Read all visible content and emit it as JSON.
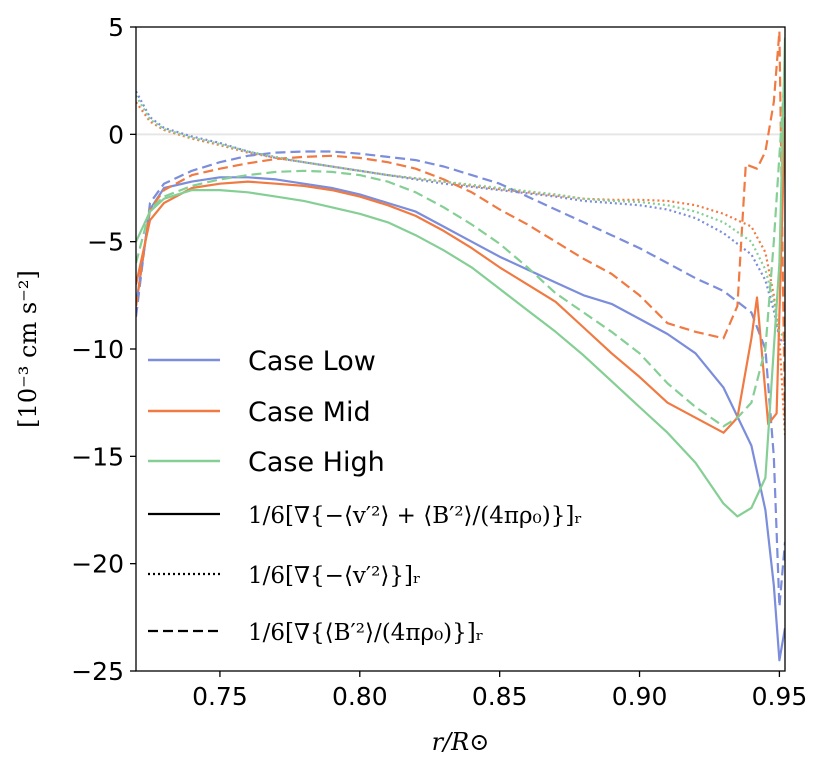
{
  "chart_data": {
    "type": "line",
    "xlabel": "r/R⊙",
    "ylabel": "[10⁻³ cm s⁻²]",
    "xlim": [
      0.72,
      0.952
    ],
    "ylim": [
      -25,
      5
    ],
    "x_ticks": [
      {
        "value": 0.75,
        "label": "0.75"
      },
      {
        "value": 0.8,
        "label": "0.80"
      },
      {
        "value": 0.85,
        "label": "0.85"
      },
      {
        "value": 0.9,
        "label": "0.90"
      },
      {
        "value": 0.95,
        "label": "0.95"
      }
    ],
    "y_ticks": [
      {
        "value": 5,
        "label": "5"
      },
      {
        "value": 0,
        "label": "0"
      },
      {
        "value": -5,
        "label": "−5"
      },
      {
        "value": -10,
        "label": "−10"
      },
      {
        "value": -15,
        "label": "−15"
      },
      {
        "value": -20,
        "label": "−20"
      },
      {
        "value": -25,
        "label": "−25"
      }
    ],
    "zero_line": true,
    "legend": {
      "placement": "lower-left",
      "cases": [
        {
          "label": "Case Low",
          "color": "#7b8ddb"
        },
        {
          "label": "Case Mid",
          "color": "#f07a42"
        },
        {
          "label": "Case High",
          "color": "#85cf95"
        }
      ],
      "styles": [
        {
          "style": "solid",
          "label": "1/6[∇{−⟨v′²⟩ + ⟨B′²⟩/(4πρ₀)}]ᵣ"
        },
        {
          "style": "dotted",
          "label": "1/6[∇{−⟨v′²⟩}]ᵣ"
        },
        {
          "style": "dashed",
          "label": "1/6[∇{⟨B′²⟩/(4πρ₀)}]ᵣ"
        }
      ]
    },
    "series": [
      {
        "name": "Case Low total",
        "case": "Case Low",
        "style": "solid",
        "color": "#7b8ddb",
        "x": [
          0.72,
          0.725,
          0.73,
          0.74,
          0.75,
          0.76,
          0.77,
          0.78,
          0.79,
          0.8,
          0.81,
          0.82,
          0.83,
          0.84,
          0.85,
          0.86,
          0.87,
          0.88,
          0.89,
          0.9,
          0.91,
          0.92,
          0.93,
          0.94,
          0.945,
          0.948,
          0.95,
          0.952
        ],
        "y": [
          -8.0,
          -3.5,
          -2.5,
          -2.2,
          -2.0,
          -2.0,
          -2.1,
          -2.3,
          -2.5,
          -2.8,
          -3.2,
          -3.6,
          -4.3,
          -5.0,
          -5.7,
          -6.3,
          -6.9,
          -7.5,
          -7.9,
          -8.6,
          -9.3,
          -10.2,
          -11.8,
          -14.5,
          -17.5,
          -21.0,
          -24.5,
          -23.0
        ]
      },
      {
        "name": "Case Low magnetic",
        "case": "Case Low",
        "style": "dashed",
        "color": "#7b8ddb",
        "x": [
          0.72,
          0.725,
          0.73,
          0.74,
          0.75,
          0.76,
          0.77,
          0.78,
          0.79,
          0.8,
          0.81,
          0.82,
          0.83,
          0.84,
          0.85,
          0.86,
          0.87,
          0.88,
          0.89,
          0.9,
          0.91,
          0.92,
          0.93,
          0.94,
          0.945,
          0.948,
          0.95,
          0.952
        ],
        "y": [
          -8.5,
          -3.2,
          -2.3,
          -1.7,
          -1.3,
          -1.0,
          -0.85,
          -0.8,
          -0.8,
          -0.9,
          -1.05,
          -1.2,
          -1.5,
          -1.9,
          -2.3,
          -2.9,
          -3.5,
          -4.1,
          -4.7,
          -5.3,
          -6.0,
          -6.7,
          -7.3,
          -8.3,
          -10.0,
          -15.0,
          -22.0,
          -19.0
        ]
      },
      {
        "name": "Case Low hydro",
        "case": "Case Low",
        "style": "dotted",
        "color": "#7b8ddb",
        "x": [
          0.72,
          0.725,
          0.73,
          0.74,
          0.75,
          0.76,
          0.77,
          0.78,
          0.79,
          0.8,
          0.81,
          0.82,
          0.83,
          0.84,
          0.85,
          0.86,
          0.87,
          0.88,
          0.89,
          0.9,
          0.91,
          0.92,
          0.93,
          0.94,
          0.945,
          0.948,
          0.95,
          0.952
        ],
        "y": [
          2.0,
          0.8,
          0.3,
          -0.1,
          -0.4,
          -0.8,
          -1.1,
          -1.3,
          -1.5,
          -1.7,
          -1.9,
          -2.1,
          -2.3,
          -2.45,
          -2.6,
          -2.75,
          -2.9,
          -3.1,
          -3.2,
          -3.3,
          -3.5,
          -3.9,
          -4.6,
          -5.6,
          -6.8,
          -8.2,
          -9.5,
          -9.8
        ]
      },
      {
        "name": "Case Mid total",
        "case": "Case Mid",
        "style": "solid",
        "color": "#f07a42",
        "x": [
          0.72,
          0.725,
          0.73,
          0.74,
          0.75,
          0.76,
          0.77,
          0.78,
          0.79,
          0.8,
          0.81,
          0.82,
          0.83,
          0.84,
          0.85,
          0.86,
          0.87,
          0.88,
          0.89,
          0.9,
          0.91,
          0.92,
          0.93,
          0.935,
          0.94,
          0.942,
          0.946,
          0.949,
          0.952
        ],
        "y": [
          -7.0,
          -4.0,
          -3.2,
          -2.5,
          -2.3,
          -2.2,
          -2.3,
          -2.4,
          -2.6,
          -2.9,
          -3.3,
          -3.8,
          -4.5,
          -5.3,
          -6.2,
          -7.0,
          -7.8,
          -9.0,
          -10.2,
          -11.3,
          -12.5,
          -13.2,
          -13.9,
          -13.2,
          -9.5,
          -7.6,
          -13.5,
          -13.0,
          0.8
        ]
      },
      {
        "name": "Case Mid magnetic",
        "case": "Case Mid",
        "style": "dashed",
        "color": "#f07a42",
        "x": [
          0.72,
          0.725,
          0.73,
          0.74,
          0.75,
          0.76,
          0.77,
          0.78,
          0.79,
          0.8,
          0.81,
          0.82,
          0.83,
          0.84,
          0.85,
          0.86,
          0.87,
          0.88,
          0.89,
          0.9,
          0.91,
          0.92,
          0.93,
          0.935,
          0.938,
          0.942,
          0.945,
          0.948,
          0.95,
          0.952
        ],
        "y": [
          -8.0,
          -3.5,
          -2.6,
          -1.9,
          -1.6,
          -1.35,
          -1.15,
          -1.05,
          -1.0,
          -1.1,
          -1.3,
          -1.6,
          -2.1,
          -2.7,
          -3.5,
          -4.2,
          -5.0,
          -5.8,
          -6.5,
          -7.5,
          -8.8,
          -9.2,
          -9.5,
          -8.0,
          -1.4,
          -1.6,
          -0.8,
          1.5,
          4.8,
          -13.5
        ]
      },
      {
        "name": "Case Mid hydro",
        "case": "Case Mid",
        "style": "dotted",
        "color": "#f07a42",
        "x": [
          0.72,
          0.725,
          0.73,
          0.74,
          0.75,
          0.76,
          0.77,
          0.78,
          0.79,
          0.8,
          0.81,
          0.82,
          0.83,
          0.84,
          0.85,
          0.86,
          0.87,
          0.88,
          0.89,
          0.9,
          0.91,
          0.92,
          0.93,
          0.94,
          0.945,
          0.948,
          0.95,
          0.952
        ],
        "y": [
          1.5,
          0.6,
          0.2,
          -0.2,
          -0.5,
          -0.85,
          -1.1,
          -1.3,
          -1.5,
          -1.7,
          -1.9,
          -2.05,
          -2.2,
          -2.4,
          -2.55,
          -2.7,
          -2.85,
          -3.0,
          -3.05,
          -3.05,
          -3.1,
          -3.3,
          -3.7,
          -4.3,
          -5.5,
          -7.5,
          -9.5,
          -14.0
        ]
      },
      {
        "name": "Case High total",
        "case": "Case High",
        "style": "solid",
        "color": "#85cf95",
        "x": [
          0.72,
          0.725,
          0.73,
          0.74,
          0.75,
          0.76,
          0.77,
          0.78,
          0.79,
          0.8,
          0.81,
          0.82,
          0.83,
          0.84,
          0.85,
          0.86,
          0.87,
          0.88,
          0.89,
          0.9,
          0.91,
          0.92,
          0.93,
          0.935,
          0.94,
          0.945,
          0.948,
          0.95,
          0.952
        ],
        "y": [
          -5.0,
          -3.6,
          -3.0,
          -2.6,
          -2.6,
          -2.7,
          -2.9,
          -3.1,
          -3.4,
          -3.7,
          -4.1,
          -4.7,
          -5.4,
          -6.2,
          -7.2,
          -8.2,
          -9.2,
          -10.3,
          -11.5,
          -12.7,
          -13.9,
          -15.3,
          -17.2,
          -17.8,
          -17.4,
          -16.0,
          -10.0,
          -6.0,
          4.5
        ]
      },
      {
        "name": "Case High magnetic",
        "case": "Case High",
        "style": "dashed",
        "color": "#85cf95",
        "x": [
          0.72,
          0.725,
          0.73,
          0.74,
          0.75,
          0.76,
          0.77,
          0.78,
          0.79,
          0.8,
          0.81,
          0.82,
          0.83,
          0.84,
          0.85,
          0.86,
          0.87,
          0.88,
          0.89,
          0.9,
          0.91,
          0.92,
          0.93,
          0.935,
          0.94,
          0.945,
          0.948,
          0.95,
          0.952
        ],
        "y": [
          -6.0,
          -3.5,
          -2.9,
          -2.4,
          -2.1,
          -1.9,
          -1.75,
          -1.7,
          -1.75,
          -1.9,
          -2.2,
          -2.7,
          -3.4,
          -4.2,
          -5.1,
          -6.2,
          -7.4,
          -8.3,
          -9.2,
          -10.2,
          -11.6,
          -12.7,
          -13.6,
          -13.2,
          -12.5,
          -10.0,
          -5.0,
          -1.0,
          3.0
        ]
      },
      {
        "name": "Case High hydro",
        "case": "Case High",
        "style": "dotted",
        "color": "#85cf95",
        "x": [
          0.72,
          0.725,
          0.73,
          0.74,
          0.75,
          0.76,
          0.77,
          0.78,
          0.79,
          0.8,
          0.81,
          0.82,
          0.83,
          0.84,
          0.85,
          0.86,
          0.87,
          0.88,
          0.89,
          0.9,
          0.91,
          0.92,
          0.93,
          0.94,
          0.945,
          0.948,
          0.95,
          0.952
        ],
        "y": [
          1.8,
          0.7,
          0.25,
          -0.15,
          -0.45,
          -0.8,
          -1.05,
          -1.3,
          -1.5,
          -1.7,
          -1.9,
          -2.05,
          -2.2,
          -2.35,
          -2.5,
          -2.65,
          -2.8,
          -3.0,
          -3.1,
          -3.15,
          -3.3,
          -3.6,
          -4.1,
          -5.0,
          -6.3,
          -7.8,
          -9.2,
          -9.5
        ]
      }
    ]
  }
}
